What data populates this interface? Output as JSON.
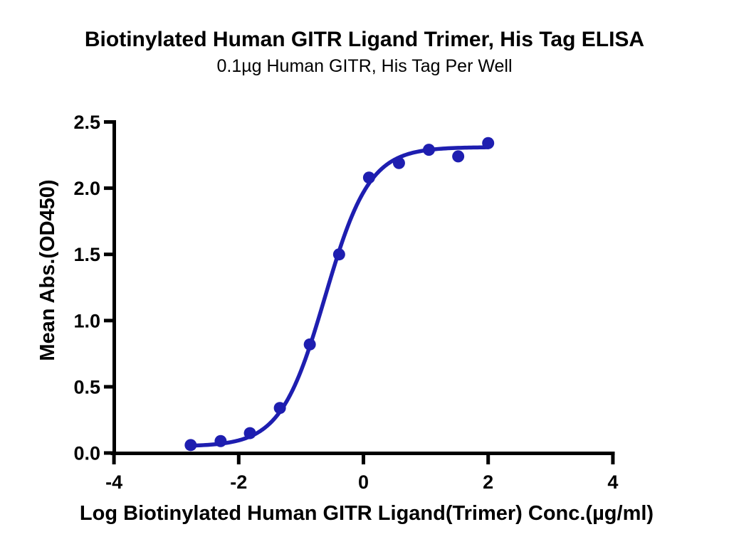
{
  "chart_data": {
    "type": "scatter",
    "title": "Biotinylated Human GITR Ligand Trimer, His Tag ELISA",
    "subtitle": "0.1µg Human GITR, His Tag Per Well",
    "xlabel": "Log Biotinylated Human GITR Ligand(Trimer) Conc.(µg/ml)",
    "ylabel": "Mean Abs.(OD450)",
    "xlim": [
      -4,
      4
    ],
    "ylim": [
      0,
      2.5
    ],
    "grid": false,
    "legend": "none",
    "x_ticks": [
      -4,
      -2,
      0,
      2,
      4
    ],
    "x_tick_labels": [
      "-4",
      "-2",
      "0",
      "2",
      "4"
    ],
    "y_ticks": [
      0,
      0.5,
      1,
      1.5,
      2,
      2.5
    ],
    "y_tick_labels": [
      "0.0",
      "0.5",
      "1.0",
      "1.5",
      "2.0",
      "2.5"
    ],
    "series": [
      {
        "name": "Biotinylated Human GITR Ligand Trimer",
        "x": [
          -2.77,
          -2.29,
          -1.82,
          -1.34,
          -0.86,
          -0.39,
          0.09,
          0.57,
          1.05,
          1.52,
          2.0
        ],
        "y": [
          0.06,
          0.09,
          0.15,
          0.34,
          0.82,
          1.5,
          2.08,
          2.19,
          2.29,
          2.24,
          2.34
        ],
        "marker": "circle"
      }
    ],
    "fit_curve": {
      "model": "4PL-sigmoid",
      "bottom": 0.05,
      "top": 2.31,
      "logEC50": -0.615,
      "hill": 1.22,
      "x_start": -2.77,
      "x_end": 2.0
    },
    "colors": {
      "series": "#1e1eb0",
      "axis": "#000000",
      "background": "#ffffff"
    }
  }
}
